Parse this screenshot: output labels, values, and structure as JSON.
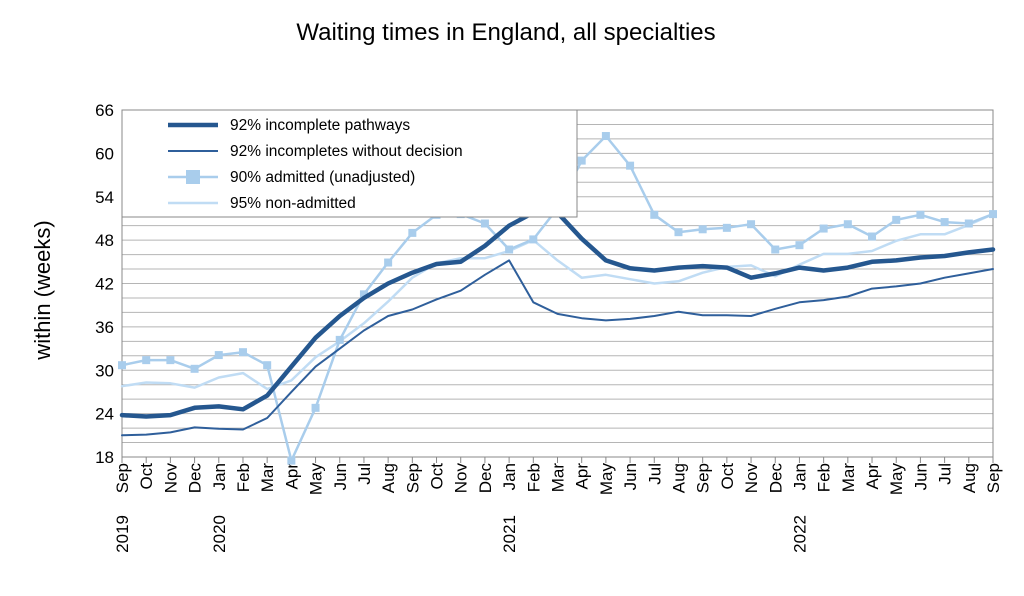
{
  "chart_data": {
    "type": "line",
    "title": "Waiting times in England, all specialties",
    "xlabel": "",
    "ylabel": "within  (weeks)",
    "ylim": [
      18,
      66
    ],
    "y_ticks": [
      18,
      24,
      30,
      36,
      42,
      48,
      54,
      60,
      66
    ],
    "grid": true,
    "legend_position": "top-left",
    "x_month_labels": [
      "Sep",
      "Oct",
      "Nov",
      "Dec",
      "Jan",
      "Feb",
      "Mar",
      "Apr",
      "May",
      "Jun",
      "Jul",
      "Aug",
      "Sep",
      "Oct",
      "Nov",
      "Dec",
      "Jan",
      "Feb",
      "Mar",
      "Apr",
      "May",
      "Jun",
      "Jul",
      "Aug",
      "Sep",
      "Oct",
      "Nov",
      "Dec",
      "Jan",
      "Feb",
      "Mar",
      "Apr",
      "May",
      "Jun",
      "Jul",
      "Aug",
      "Sep"
    ],
    "x_year_labels": [
      {
        "index": 0,
        "label": "2019"
      },
      {
        "index": 4,
        "label": "2020"
      },
      {
        "index": 16,
        "label": "2021"
      },
      {
        "index": 28,
        "label": "2022"
      }
    ],
    "series": [
      {
        "name": "92% incomplete pathways",
        "color": "#25578f",
        "width": 4.5,
        "marker": "none",
        "values": [
          23.8,
          23.6,
          23.8,
          24.8,
          25.0,
          24.6,
          26.5,
          30.5,
          34.5,
          37.5,
          40.0,
          42.0,
          43.5,
          44.7,
          45.0,
          47.2,
          50.0,
          51.8,
          51.8,
          48.2,
          45.2,
          44.1,
          43.8,
          44.2,
          44.4,
          44.2,
          42.8,
          43.4,
          44.2,
          43.8,
          44.2,
          45.0,
          45.2,
          45.6,
          45.8,
          46.3,
          46.7
        ]
      },
      {
        "name": "92% incompletes without decision",
        "color": "#2f5f9b",
        "width": 2,
        "marker": "none",
        "values": [
          21.0,
          21.1,
          21.4,
          22.1,
          21.9,
          21.8,
          23.4,
          27.0,
          30.5,
          33.0,
          35.5,
          37.5,
          38.4,
          39.8,
          41.0,
          43.2,
          45.2,
          39.4,
          37.8,
          37.2,
          36.9,
          37.1,
          37.5,
          38.1,
          37.6,
          37.6,
          37.5,
          38.5,
          39.4,
          39.7,
          40.2,
          41.3,
          41.6,
          42.0,
          42.8,
          43.4,
          44.0
        ]
      },
      {
        "name": "90% admitted (unadjusted)",
        "color": "#a9cdec",
        "width": 2.5,
        "marker": "square",
        "values": [
          30.7,
          31.4,
          31.4,
          30.2,
          32.1,
          32.5,
          30.7,
          17.5,
          24.8,
          34.2,
          40.5,
          44.9,
          49.0,
          51.5,
          51.6,
          50.3,
          46.7,
          48.1,
          52.4,
          59.0,
          62.4,
          58.3,
          51.5,
          49.1,
          49.5,
          49.7,
          50.2,
          46.7,
          47.3,
          49.6,
          50.2,
          48.5,
          50.8,
          51.5,
          50.5,
          50.3,
          51.6
        ]
      },
      {
        "name": "95% non-admitted",
        "color": "#c0dcf4",
        "width": 2.5,
        "marker": "none",
        "values": [
          27.8,
          28.3,
          28.2,
          27.6,
          29.0,
          29.6,
          27.4,
          28.6,
          31.8,
          34.0,
          36.5,
          39.5,
          42.8,
          44.8,
          45.5,
          45.5,
          46.5,
          48.0,
          45.2,
          42.8,
          43.2,
          42.6,
          42.0,
          42.3,
          43.5,
          44.3,
          44.5,
          43.0,
          44.6,
          46.1,
          46.1,
          46.5,
          47.9,
          48.8,
          48.8,
          50.1,
          51.6
        ]
      }
    ]
  }
}
